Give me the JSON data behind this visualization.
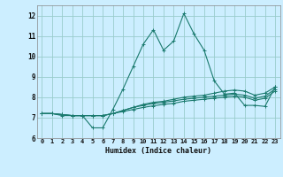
{
  "xlabel": "Humidex (Indice chaleur)",
  "xlim": [
    -0.5,
    23.5
  ],
  "ylim": [
    6,
    12.5
  ],
  "yticks": [
    6,
    7,
    8,
    9,
    10,
    11,
    12
  ],
  "xticks": [
    0,
    1,
    2,
    3,
    4,
    5,
    6,
    7,
    8,
    9,
    10,
    11,
    12,
    13,
    14,
    15,
    16,
    17,
    18,
    19,
    20,
    21,
    22,
    23
  ],
  "background_color": "#cceeff",
  "grid_color": "#99cccc",
  "line_color": "#1a7a6e",
  "lines": [
    [
      7.2,
      7.2,
      7.1,
      7.1,
      7.1,
      6.5,
      6.5,
      7.4,
      8.4,
      9.5,
      10.6,
      11.3,
      10.3,
      10.75,
      12.1,
      11.1,
      10.3,
      8.8,
      8.15,
      8.2,
      7.6,
      7.6,
      7.55,
      8.5
    ],
    [
      7.2,
      7.2,
      7.15,
      7.1,
      7.1,
      7.1,
      7.1,
      7.2,
      7.35,
      7.5,
      7.65,
      7.75,
      7.8,
      7.9,
      8.0,
      8.05,
      8.1,
      8.2,
      8.3,
      8.35,
      8.3,
      8.1,
      8.2,
      8.5
    ],
    [
      7.2,
      7.2,
      7.15,
      7.1,
      7.1,
      7.1,
      7.1,
      7.2,
      7.35,
      7.5,
      7.6,
      7.7,
      7.75,
      7.82,
      7.9,
      7.95,
      8.0,
      8.05,
      8.1,
      8.15,
      8.1,
      7.95,
      8.05,
      8.4
    ],
    [
      7.2,
      7.2,
      7.15,
      7.1,
      7.1,
      7.1,
      7.1,
      7.2,
      7.3,
      7.4,
      7.5,
      7.58,
      7.65,
      7.7,
      7.8,
      7.85,
      7.9,
      7.95,
      8.0,
      8.05,
      8.0,
      7.85,
      7.95,
      8.3
    ]
  ]
}
